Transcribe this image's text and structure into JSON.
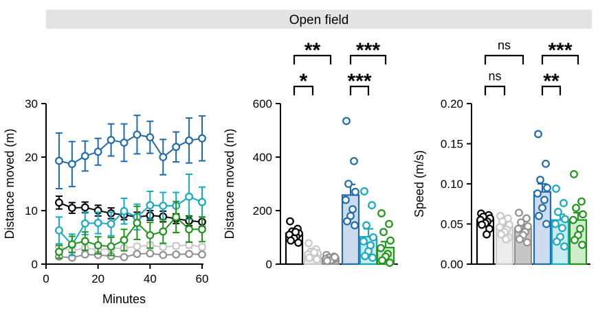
{
  "figure": {
    "title": "Open field"
  },
  "colors": {
    "black": "#000000",
    "gray": "#909090",
    "lightgray": "#c8c8c8",
    "blue": "#1f6aab",
    "cyan": "#16a8c2",
    "green": "#1e9418"
  },
  "chart_data": [
    {
      "type": "line",
      "xlabel": "Minutes",
      "ylabel": "Distance moved (m)",
      "xlim": [
        0,
        60
      ],
      "ylim": [
        0,
        30
      ],
      "xticks": [
        "0",
        "20",
        "40",
        "60"
      ],
      "yticks": [
        "0",
        "10",
        "20",
        "30"
      ],
      "x": [
        5,
        10,
        15,
        20,
        25,
        30,
        35,
        40,
        45,
        50,
        55,
        60
      ],
      "series": [
        {
          "color": "black",
          "y": [
            11.5,
            10.5,
            10.6,
            10.0,
            9.5,
            9.2,
            8.8,
            9.1,
            8.9,
            8.5,
            8.1,
            7.9
          ],
          "err": [
            1.2,
            1.0,
            1.0,
            1.0,
            1.0,
            0.9,
            0.9,
            0.9,
            1.0,
            0.9,
            0.9,
            0.9
          ]
        },
        {
          "color": "lightgray",
          "y": [
            3.2,
            2.5,
            3.0,
            2.7,
            2.9,
            3.0,
            3.3,
            3.5,
            3.2,
            3.4,
            3.6,
            3.2
          ],
          "err": [
            0.5,
            0.4,
            0.5,
            0.4,
            0.5,
            0.5,
            0.5,
            0.6,
            0.5,
            0.5,
            0.6,
            0.5
          ]
        },
        {
          "color": "gray",
          "y": [
            1.4,
            1.2,
            1.8,
            1.7,
            1.5,
            1.3,
            1.9,
            2.0,
            1.7,
            1.8,
            1.9,
            1.8
          ],
          "err": [
            0.3,
            0.3,
            0.3,
            0.3,
            0.3,
            0.3,
            0.3,
            0.3,
            0.3,
            0.3,
            0.3,
            0.3
          ]
        },
        {
          "color": "blue",
          "y": [
            19.3,
            18.7,
            20.2,
            21.0,
            23.2,
            22.7,
            24.2,
            23.7,
            20.0,
            21.9,
            23.1,
            23.5
          ],
          "err": [
            5.2,
            4.2,
            2.8,
            2.5,
            3.0,
            3.5,
            3.6,
            3.0,
            3.3,
            2.8,
            4.2,
            4.2
          ]
        },
        {
          "color": "cyan",
          "y": [
            6.3,
            3.6,
            7.6,
            7.7,
            7.5,
            9.9,
            8.8,
            11.0,
            10.9,
            10.9,
            12.6,
            11.6
          ],
          "err": [
            2.5,
            2.0,
            2.1,
            2.0,
            2.2,
            2.4,
            2.4,
            2.6,
            2.5,
            2.5,
            4.2,
            2.8
          ]
        },
        {
          "color": "green",
          "y": [
            2.3,
            3.7,
            4.3,
            3.5,
            3.3,
            4.5,
            7.7,
            5.4,
            6.1,
            8.8,
            6.5,
            6.5
          ],
          "err": [
            1.2,
            1.5,
            1.7,
            1.6,
            1.7,
            2.0,
            3.1,
            2.4,
            2.2,
            2.9,
            2.4,
            2.3
          ]
        }
      ]
    },
    {
      "type": "bar",
      "ylabel": "Distance moved (m)",
      "ylim": [
        0,
        600
      ],
      "yticks": [
        "0",
        "200",
        "400",
        "600"
      ],
      "bars": [
        {
          "color": "black",
          "fill": "#ffffff",
          "value": 115,
          "err": 14,
          "points": [
            160,
            132,
            122,
            115,
            110,
            103,
            96,
            88,
            80,
            120
          ]
        },
        {
          "color": "lightgray",
          "fill": "#ececec",
          "value": 42,
          "err": 10,
          "points": [
            78,
            55,
            46,
            40,
            36,
            32,
            28,
            24,
            18,
            44
          ]
        },
        {
          "color": "gray",
          "fill": "#c6c6c6",
          "value": 22,
          "err": 5,
          "points": [
            34,
            28,
            24,
            21,
            19,
            17,
            14,
            12,
            26
          ]
        },
        {
          "color": "blue",
          "fill": "#ccdbed",
          "value": 258,
          "err": 40,
          "points": [
            535,
            385,
            300,
            270,
            240,
            205,
            180,
            160,
            145
          ]
        },
        {
          "color": "cyan",
          "fill": "#c9ecf3",
          "value": 102,
          "err": 30,
          "points": [
            272,
            220,
            145,
            100,
            85,
            70,
            48,
            30,
            24
          ]
        },
        {
          "color": "green",
          "fill": "#cfeccd",
          "value": 62,
          "err": 22,
          "points": [
            190,
            150,
            120,
            88,
            60,
            38,
            28,
            14,
            5
          ]
        }
      ],
      "comparisons": [
        {
          "from": 0,
          "to": 1,
          "label": "*",
          "level": 1
        },
        {
          "from": 0,
          "to": 2,
          "label": "**",
          "level": 2
        },
        {
          "from": 3,
          "to": 4,
          "label": "***",
          "level": 1
        },
        {
          "from": 3,
          "to": 5,
          "label": "***",
          "level": 2
        }
      ]
    },
    {
      "type": "bar",
      "ylabel": "Speed (m/s)",
      "ylim": [
        0,
        0.2
      ],
      "yticks": [
        "0.00",
        "0.05",
        "0.10",
        "0.15",
        "0.20"
      ],
      "bars": [
        {
          "color": "black",
          "fill": "#ffffff",
          "value": 0.055,
          "err": 0.003,
          "points": [
            0.063,
            0.061,
            0.059,
            0.057,
            0.055,
            0.053,
            0.051,
            0.049,
            0.044,
            0.037
          ]
        },
        {
          "color": "lightgray",
          "fill": "#ececec",
          "value": 0.046,
          "err": 0.003,
          "points": [
            0.06,
            0.057,
            0.053,
            0.049,
            0.046,
            0.043,
            0.04,
            0.037,
            0.033,
            0.031
          ]
        },
        {
          "color": "gray",
          "fill": "#c6c6c6",
          "value": 0.044,
          "err": 0.004,
          "points": [
            0.064,
            0.057,
            0.052,
            0.047,
            0.044,
            0.04,
            0.036,
            0.031,
            0.027
          ]
        },
        {
          "color": "blue",
          "fill": "#ccdbed",
          "value": 0.09,
          "err": 0.01,
          "points": [
            0.162,
            0.125,
            0.105,
            0.095,
            0.088,
            0.08,
            0.07,
            0.06,
            0.05
          ]
        },
        {
          "color": "cyan",
          "fill": "#c9ecf3",
          "value": 0.055,
          "err": 0.007,
          "points": [
            0.094,
            0.076,
            0.065,
            0.056,
            0.05,
            0.045,
            0.034,
            0.028,
            0.022
          ]
        },
        {
          "color": "green",
          "fill": "#cfeccd",
          "value": 0.055,
          "err": 0.009,
          "points": [
            0.112,
            0.078,
            0.07,
            0.062,
            0.055,
            0.044,
            0.036,
            0.03,
            0.024
          ]
        }
      ],
      "comparisons": [
        {
          "from": 0,
          "to": 1,
          "label": "ns",
          "level": 1
        },
        {
          "from": 0,
          "to": 2,
          "label": "ns",
          "level": 2
        },
        {
          "from": 3,
          "to": 4,
          "label": "**",
          "level": 1
        },
        {
          "from": 3,
          "to": 5,
          "label": "***",
          "level": 2
        }
      ]
    }
  ]
}
